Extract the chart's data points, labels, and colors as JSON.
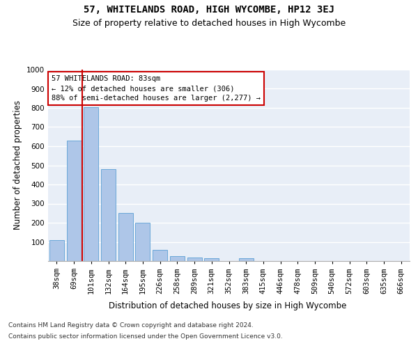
{
  "title": "57, WHITELANDS ROAD, HIGH WYCOMBE, HP12 3EJ",
  "subtitle": "Size of property relative to detached houses in High Wycombe",
  "xlabel": "Distribution of detached houses by size in High Wycombe",
  "ylabel": "Number of detached properties",
  "categories": [
    "38sqm",
    "69sqm",
    "101sqm",
    "132sqm",
    "164sqm",
    "195sqm",
    "226sqm",
    "258sqm",
    "289sqm",
    "321sqm",
    "352sqm",
    "383sqm",
    "415sqm",
    "446sqm",
    "478sqm",
    "509sqm",
    "540sqm",
    "572sqm",
    "603sqm",
    "635sqm",
    "666sqm"
  ],
  "values": [
    110,
    630,
    805,
    480,
    250,
    200,
    60,
    27,
    18,
    13,
    0,
    13,
    0,
    0,
    0,
    0,
    0,
    0,
    0,
    0,
    0
  ],
  "bar_color": "#aec6e8",
  "bar_edge_color": "#5a9fd4",
  "property_label": "57 WHITELANDS ROAD: 83sqm",
  "pct_smaller": 12,
  "n_smaller": 306,
  "pct_larger_semi": 88,
  "n_larger_semi": 2277,
  "vline_x_index": 1.5,
  "annotation_box_color": "#cc0000",
  "ylim": [
    0,
    1000
  ],
  "yticks": [
    0,
    100,
    200,
    300,
    400,
    500,
    600,
    700,
    800,
    900,
    1000
  ],
  "footer_line1": "Contains HM Land Registry data © Crown copyright and database right 2024.",
  "footer_line2": "Contains public sector information licensed under the Open Government Licence v3.0.",
  "background_color": "#e8eef7",
  "title_fontsize": 10,
  "subtitle_fontsize": 9,
  "axis_label_fontsize": 8.5,
  "tick_fontsize": 7.5,
  "footer_fontsize": 6.5
}
